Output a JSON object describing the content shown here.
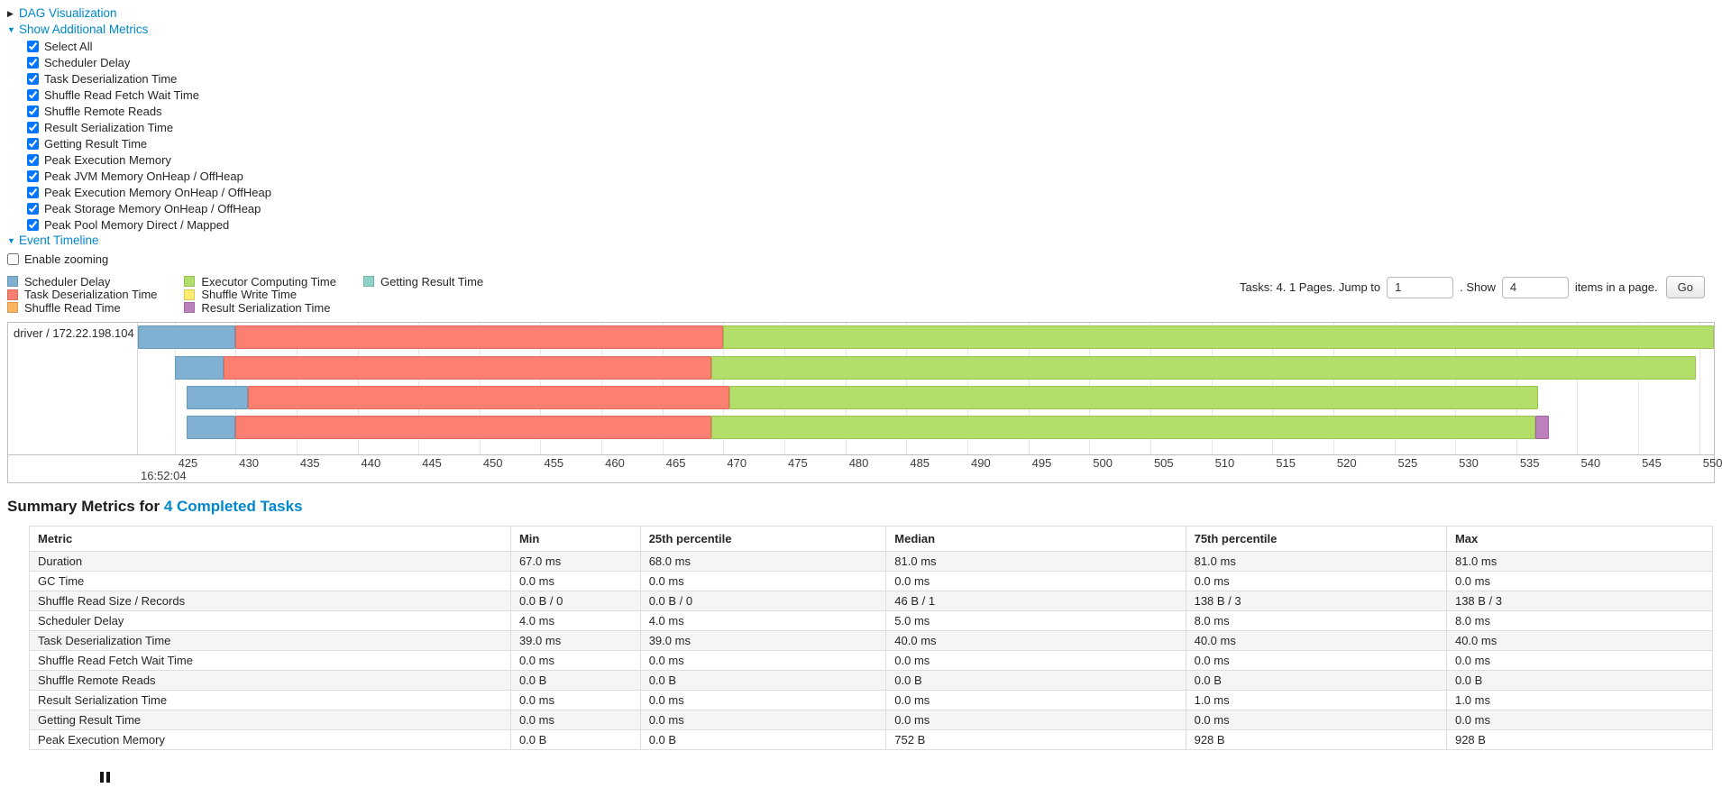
{
  "accent": {
    "link_color": "#0088cc"
  },
  "sections": {
    "dag": {
      "label": "DAG Visualization",
      "state": "collapsed"
    },
    "additional_metrics": {
      "label": "Show Additional Metrics",
      "state": "expanded"
    },
    "event_timeline": {
      "label": "Event Timeline",
      "state": "expanded"
    }
  },
  "metric_checkboxes": [
    {
      "label": "Select All",
      "checked": true
    },
    {
      "label": "Scheduler Delay",
      "checked": true
    },
    {
      "label": "Task Deserialization Time",
      "checked": true
    },
    {
      "label": "Shuffle Read Fetch Wait Time",
      "checked": true
    },
    {
      "label": "Shuffle Remote Reads",
      "checked": true
    },
    {
      "label": "Result Serialization Time",
      "checked": true
    },
    {
      "label": "Getting Result Time",
      "checked": true
    },
    {
      "label": "Peak Execution Memory",
      "checked": true
    },
    {
      "label": "Peak JVM Memory OnHeap / OffHeap",
      "checked": true
    },
    {
      "label": "Peak Execution Memory OnHeap / OffHeap",
      "checked": true
    },
    {
      "label": "Peak Storage Memory OnHeap / OffHeap",
      "checked": true
    },
    {
      "label": "Peak Pool Memory Direct / Mapped",
      "checked": true
    }
  ],
  "enable_zooming": {
    "label": "Enable zooming",
    "checked": false
  },
  "legend_columns": [
    [
      {
        "label": "Scheduler Delay",
        "color": "#80B1D3"
      },
      {
        "label": "Task Deserialization Time",
        "color": "#FB8072"
      },
      {
        "label": "Shuffle Read Time",
        "color": "#FDB462"
      }
    ],
    [
      {
        "label": "Executor Computing Time",
        "color": "#B3DE69"
      },
      {
        "label": "Shuffle Write Time",
        "color": "#FFED6F"
      },
      {
        "label": "Result Serialization Time",
        "color": "#BC80BD"
      }
    ],
    [
      {
        "label": "Getting Result Time",
        "color": "#8DD3C7"
      }
    ]
  ],
  "pagination": {
    "prefix": "Tasks: 4. 1 Pages. Jump to",
    "page_value": "1",
    "show_label": ". Show",
    "show_value": "4",
    "suffix": "items in a page.",
    "go_label": "Go"
  },
  "chart_data": {
    "type": "timeline",
    "title": "Event Timeline",
    "row_label": "driver / 172.22.198.104",
    "x_axis": {
      "unit": "ms within second",
      "major_label": "16:52:04",
      "min": 422,
      "max": 551.2,
      "tick_step": 5,
      "ticks": [
        425,
        430,
        435,
        440,
        445,
        450,
        455,
        460,
        465,
        470,
        475,
        480,
        485,
        490,
        495,
        500,
        505,
        510,
        515,
        520,
        525,
        530,
        535,
        540,
        545,
        550
      ]
    },
    "colors": {
      "Scheduler Delay": "#80B1D3",
      "Task Deserialization Time": "#FB8072",
      "Shuffle Read Time": "#FDB462",
      "Executor Computing Time": "#B3DE69",
      "Shuffle Write Time": "#FFED6F",
      "Result Serialization Time": "#BC80BD",
      "Getting Result Time": "#8DD3C7"
    },
    "tasks": [
      {
        "task": 1,
        "segments": [
          {
            "metric": "Scheduler Delay",
            "start": 422.0,
            "end": 430.0
          },
          {
            "metric": "Task Deserialization Time",
            "start": 430.0,
            "end": 470.0
          },
          {
            "metric": "Executor Computing Time",
            "start": 470.0,
            "end": 551.2
          }
        ]
      },
      {
        "task": 2,
        "segments": [
          {
            "metric": "Scheduler Delay",
            "start": 425.0,
            "end": 429.0
          },
          {
            "metric": "Task Deserialization Time",
            "start": 429.0,
            "end": 469.0
          },
          {
            "metric": "Executor Computing Time",
            "start": 469.0,
            "end": 549.7
          }
        ]
      },
      {
        "task": 3,
        "segments": [
          {
            "metric": "Scheduler Delay",
            "start": 426.0,
            "end": 431.0
          },
          {
            "metric": "Task Deserialization Time",
            "start": 431.0,
            "end": 470.5
          },
          {
            "metric": "Executor Computing Time",
            "start": 470.5,
            "end": 536.8
          }
        ]
      },
      {
        "task": 4,
        "segments": [
          {
            "metric": "Scheduler Delay",
            "start": 426.0,
            "end": 430.0
          },
          {
            "metric": "Task Deserialization Time",
            "start": 430.0,
            "end": 469.0
          },
          {
            "metric": "Executor Computing Time",
            "start": 469.0,
            "end": 536.6
          },
          {
            "metric": "Result Serialization Time",
            "start": 536.6,
            "end": 537.7
          }
        ]
      }
    ]
  },
  "summary": {
    "heading_prefix": "Summary Metrics for ",
    "heading_link": "4 Completed Tasks",
    "columns": [
      "Metric",
      "Min",
      "25th percentile",
      "Median",
      "75th percentile",
      "Max"
    ],
    "rows": [
      [
        "Duration",
        "67.0 ms",
        "68.0 ms",
        "81.0 ms",
        "81.0 ms",
        "81.0 ms"
      ],
      [
        "GC Time",
        "0.0 ms",
        "0.0 ms",
        "0.0 ms",
        "0.0 ms",
        "0.0 ms"
      ],
      [
        "Shuffle Read Size / Records",
        "0.0 B / 0",
        "0.0 B / 0",
        "46 B / 1",
        "138 B / 3",
        "138 B / 3"
      ],
      [
        "Scheduler Delay",
        "4.0 ms",
        "4.0 ms",
        "5.0 ms",
        "8.0 ms",
        "8.0 ms"
      ],
      [
        "Task Deserialization Time",
        "39.0 ms",
        "39.0 ms",
        "40.0 ms",
        "40.0 ms",
        "40.0 ms"
      ],
      [
        "Shuffle Read Fetch Wait Time",
        "0.0 ms",
        "0.0 ms",
        "0.0 ms",
        "0.0 ms",
        "0.0 ms"
      ],
      [
        "Shuffle Remote Reads",
        "0.0 B",
        "0.0 B",
        "0.0 B",
        "0.0 B",
        "0.0 B"
      ],
      [
        "Result Serialization Time",
        "0.0 ms",
        "0.0 ms",
        "0.0 ms",
        "1.0 ms",
        "1.0 ms"
      ],
      [
        "Getting Result Time",
        "0.0 ms",
        "0.0 ms",
        "0.0 ms",
        "0.0 ms",
        "0.0 ms"
      ],
      [
        "Peak Execution Memory",
        "0.0 B",
        "0.0 B",
        "752 B",
        "928 B",
        "928 B"
      ]
    ]
  }
}
